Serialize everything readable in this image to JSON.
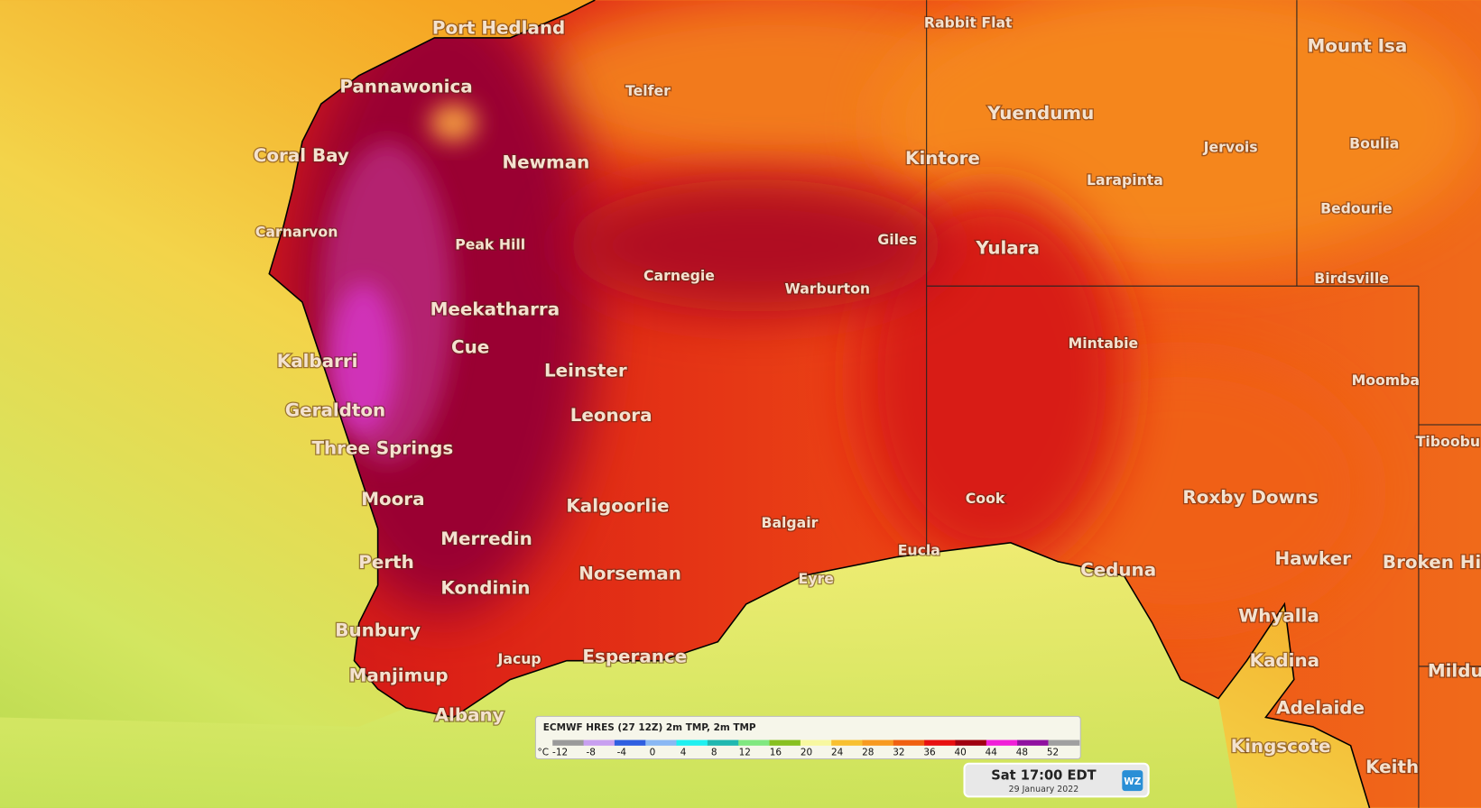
{
  "places": [
    {
      "name": "Port Hedland"
    },
    {
      "name": "Pannawonica"
    },
    {
      "name": "Coral Bay"
    },
    {
      "name": "Carnarvon"
    },
    {
      "name": "Telfer"
    },
    {
      "name": "Newman"
    },
    {
      "name": "Peak Hill"
    },
    {
      "name": "Rabbit Flat"
    },
    {
      "name": "Mount Isa"
    },
    {
      "name": "Yuendumu"
    },
    {
      "name": "Jervois"
    },
    {
      "name": "Boulia"
    },
    {
      "name": "Kintore"
    },
    {
      "name": "Larapinta"
    },
    {
      "name": "Bedourie"
    },
    {
      "name": "Giles"
    },
    {
      "name": "Yulara"
    },
    {
      "name": "Birdsville"
    },
    {
      "name": "Carnegie"
    },
    {
      "name": "Warburton"
    },
    {
      "name": "Meekatharra"
    },
    {
      "name": "Cue"
    },
    {
      "name": "Mintabie"
    },
    {
      "name": "Kalbarri"
    },
    {
      "name": "Leinster"
    },
    {
      "name": "Moomba"
    },
    {
      "name": "Geraldton"
    },
    {
      "name": "Leonora"
    },
    {
      "name": "Three Springs"
    },
    {
      "name": "Tiboobu"
    },
    {
      "name": "Cook"
    },
    {
      "name": "Roxby Downs"
    },
    {
      "name": "Moora"
    },
    {
      "name": "Kalgoorlie"
    },
    {
      "name": "Balgair"
    },
    {
      "name": "Merredin"
    },
    {
      "name": "Eucla"
    },
    {
      "name": "Hawker"
    },
    {
      "name": "Broken Hi"
    },
    {
      "name": "Perth"
    },
    {
      "name": "Ceduna"
    },
    {
      "name": "Norseman"
    },
    {
      "name": "Eyre"
    },
    {
      "name": "Kondinin"
    },
    {
      "name": "Whyalla"
    },
    {
      "name": "Bunbury"
    },
    {
      "name": "Jacup"
    },
    {
      "name": "Esperance"
    },
    {
      "name": "Kadina"
    },
    {
      "name": "Mildu"
    },
    {
      "name": "Manjimup"
    },
    {
      "name": "Adelaide"
    },
    {
      "name": "Albany"
    },
    {
      "name": "Kingscote"
    },
    {
      "name": "Keith"
    }
  ],
  "legend": {
    "title": "ECMWF HRES (27 12Z) 2m TMP, 2m TMP",
    "unit": "°C",
    "ticks": [
      -12,
      -8,
      -4,
      0,
      4,
      8,
      12,
      16,
      20,
      24,
      28,
      32,
      36,
      40,
      44,
      48,
      52
    ],
    "colors": [
      "#9a9a9a",
      "#c8a0f0",
      "#2f5fe0",
      "#8ab8f4",
      "#20f0f0",
      "#20b8b0",
      "#80e880",
      "#88c020",
      "#f8f8a0",
      "#f8c030",
      "#f89a20",
      "#f06010",
      "#e81010",
      "#a00010",
      "#f020d8",
      "#9010a0",
      "#a0a0a0"
    ]
  },
  "time": {
    "label": "Sat 17:00 EDT",
    "date": "29 January 2022"
  },
  "logo": "WZ"
}
